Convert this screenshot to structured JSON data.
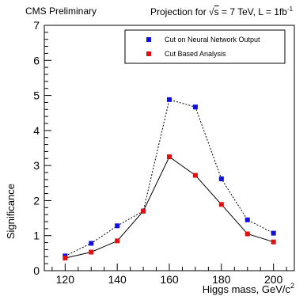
{
  "header": {
    "left": "CMS Preliminary",
    "right_prefix": "Projection for ",
    "sqrt_symbol": "√",
    "right_s": "s",
    "right_mid": " = 7 TeV, L = 1fb",
    "right_sup": "-1"
  },
  "chart_data": {
    "type": "line",
    "title": "",
    "xlabel": "Higgs mass, GeV/c",
    "xlabel_sup": "2",
    "ylabel": "Significance",
    "xlim": [
      112,
      208
    ],
    "ylim": [
      0,
      7
    ],
    "xticks": [
      120,
      140,
      160,
      180,
      200
    ],
    "yticks": [
      0,
      1,
      2,
      3,
      4,
      5,
      6,
      7
    ],
    "grid": false,
    "legend_position": "top-right",
    "x": [
      120,
      130,
      140,
      150,
      160,
      170,
      180,
      190,
      200
    ],
    "series": [
      {
        "name": "Cut on Neural Network Output",
        "color": "#1010e0",
        "line_style": "dotted",
        "values": [
          0.42,
          0.78,
          1.28,
          1.7,
          4.88,
          4.67,
          2.62,
          1.45,
          1.07
        ]
      },
      {
        "name": "Cut Based Analysis",
        "color": "#e01010",
        "line_style": "solid",
        "values": [
          0.36,
          0.53,
          0.85,
          1.7,
          3.25,
          2.72,
          1.89,
          1.05,
          0.82
        ]
      }
    ]
  }
}
